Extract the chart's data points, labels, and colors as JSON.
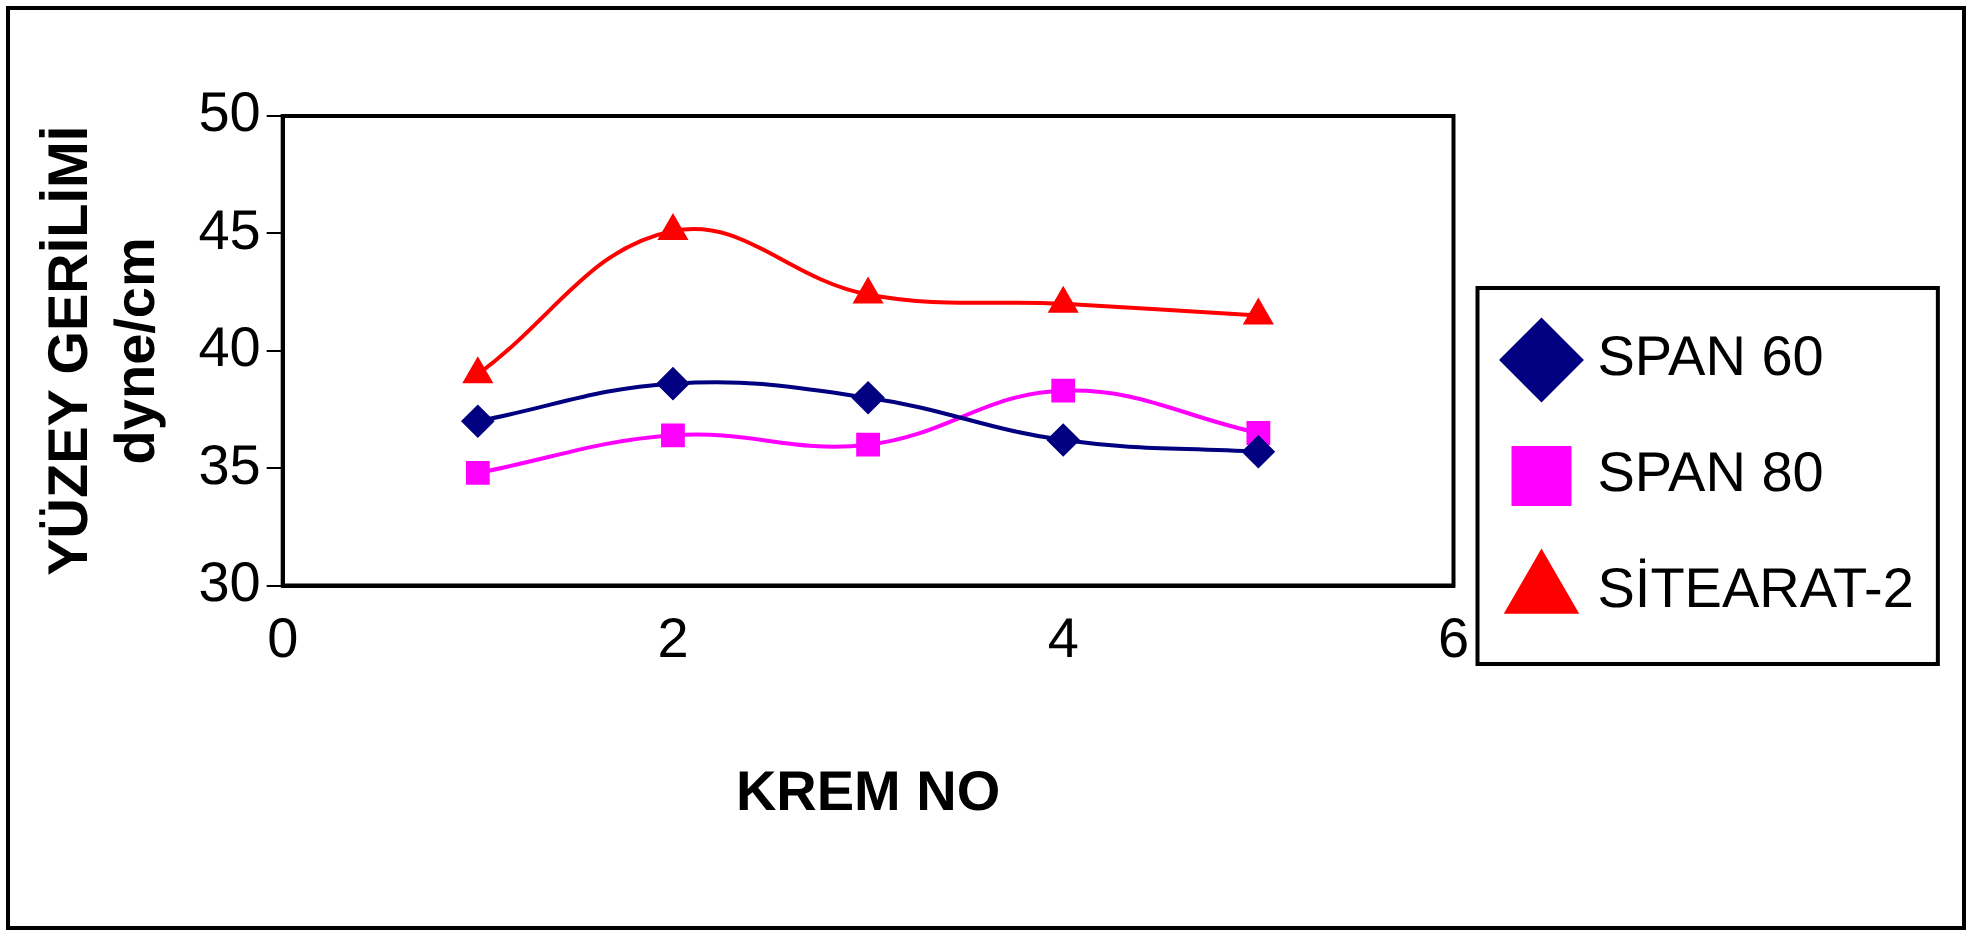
{
  "chart_data": {
    "type": "line",
    "xlabel": "KREM NO",
    "ylabel": "YÜZEY GERİLİMİ\ndyne/cm",
    "x": [
      1,
      2,
      3,
      4,
      5
    ],
    "series": [
      {
        "name": "SPAN 60",
        "color": "#000080",
        "marker": "diamond",
        "values": [
          37.0,
          38.6,
          38.0,
          36.2,
          35.7
        ]
      },
      {
        "name": "SPAN 80",
        "color": "#ff00ff",
        "marker": "square",
        "values": [
          34.8,
          36.4,
          36.0,
          38.3,
          36.5
        ]
      },
      {
        "name": "SİTEARAT-2",
        "color": "#ff0000",
        "marker": "triangle",
        "values": [
          39.0,
          45.1,
          42.4,
          42.0,
          41.5
        ]
      }
    ],
    "xlim": [
      0,
      6
    ],
    "xticks": [
      0,
      2,
      4,
      6
    ],
    "ylim": [
      30,
      50
    ],
    "yticks": [
      30,
      35,
      40,
      45,
      50
    ],
    "grid": false,
    "legend": "right"
  }
}
